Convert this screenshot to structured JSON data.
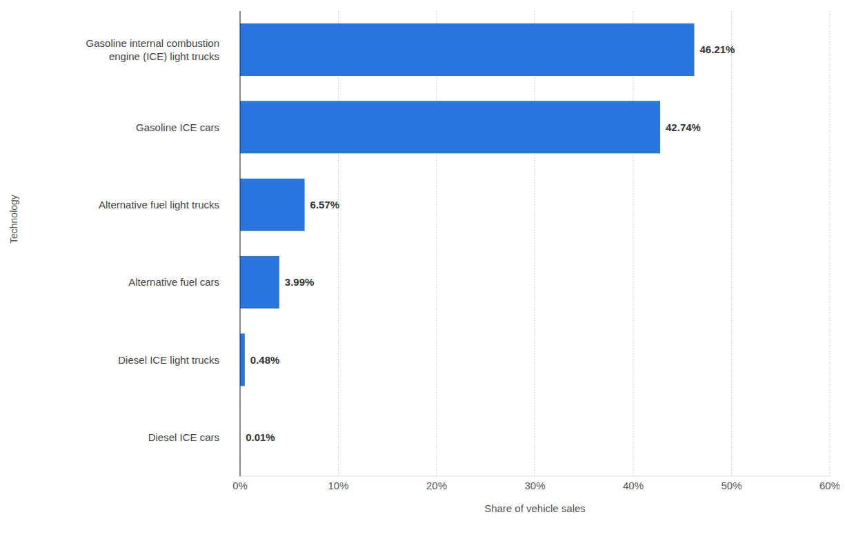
{
  "chart_data": {
    "type": "bar",
    "orientation": "horizontal",
    "x_label": "Share of vehicle sales",
    "y_label": "Technology",
    "categories": [
      "Gasoline internal combustion engine (ICE) light trucks",
      "Gasoline ICE cars",
      "Alternative fuel light trucks",
      "Alternative fuel cars",
      "Diesel ICE light trucks",
      "Diesel ICE cars"
    ],
    "values": [
      46.21,
      42.74,
      6.57,
      3.99,
      0.48,
      0.01
    ],
    "value_labels": [
      "46.21%",
      "42.74%",
      "6.57%",
      "3.99%",
      "0.48%",
      "0.01%"
    ],
    "color": "#2876dd",
    "xlim": [
      0,
      60
    ],
    "xticks": [
      {
        "value": 0,
        "label": "0%"
      },
      {
        "value": 10,
        "label": "10%"
      },
      {
        "value": 20,
        "label": "20%"
      },
      {
        "value": 30,
        "label": "30%"
      },
      {
        "value": 40,
        "label": "40%"
      },
      {
        "value": 50,
        "label": "50%"
      },
      {
        "value": 60,
        "label": "60%"
      }
    ],
    "grid": true,
    "data_labels": true
  }
}
